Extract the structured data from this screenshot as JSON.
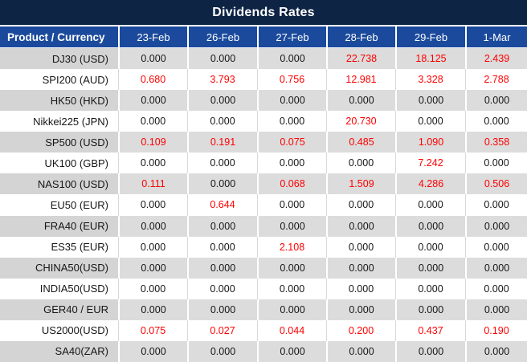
{
  "title": "Dividends Rates",
  "table": {
    "product_header": "Product / Currency",
    "date_headers": [
      "23-Feb",
      "26-Feb",
      "27-Feb",
      "28-Feb",
      "29-Feb",
      "1-Mar"
    ],
    "rows": [
      {
        "product": "DJ30 (USD)",
        "values": [
          "0.000",
          "0.000",
          "0.000",
          "22.738",
          "18.125",
          "2.439"
        ],
        "red": [
          false,
          false,
          false,
          true,
          true,
          true
        ]
      },
      {
        "product": "SPI200 (AUD)",
        "values": [
          "0.680",
          "3.793",
          "0.756",
          "12.981",
          "3.328",
          "2.788"
        ],
        "red": [
          true,
          true,
          true,
          true,
          true,
          true
        ]
      },
      {
        "product": "HK50 (HKD)",
        "values": [
          "0.000",
          "0.000",
          "0.000",
          "0.000",
          "0.000",
          "0.000"
        ],
        "red": [
          false,
          false,
          false,
          false,
          false,
          false
        ]
      },
      {
        "product": "Nikkei225 (JPN)",
        "values": [
          "0.000",
          "0.000",
          "0.000",
          "20.730",
          "0.000",
          "0.000"
        ],
        "red": [
          false,
          false,
          false,
          true,
          false,
          false
        ]
      },
      {
        "product": "SP500 (USD)",
        "values": [
          "0.109",
          "0.191",
          "0.075",
          "0.485",
          "1.090",
          "0.358"
        ],
        "red": [
          true,
          true,
          true,
          true,
          true,
          true
        ]
      },
      {
        "product": "UK100 (GBP)",
        "values": [
          "0.000",
          "0.000",
          "0.000",
          "0.000",
          "7.242",
          "0.000"
        ],
        "red": [
          false,
          false,
          false,
          false,
          true,
          false
        ]
      },
      {
        "product": "NAS100 (USD)",
        "values": [
          "0.111",
          "0.000",
          "0.068",
          "1.509",
          "4.286",
          "0.506"
        ],
        "red": [
          true,
          false,
          true,
          true,
          true,
          true
        ]
      },
      {
        "product": "EU50 (EUR)",
        "values": [
          "0.000",
          "0.644",
          "0.000",
          "0.000",
          "0.000",
          "0.000"
        ],
        "red": [
          false,
          true,
          false,
          false,
          false,
          false
        ]
      },
      {
        "product": "FRA40 (EUR)",
        "values": [
          "0.000",
          "0.000",
          "0.000",
          "0.000",
          "0.000",
          "0.000"
        ],
        "red": [
          false,
          false,
          false,
          false,
          false,
          false
        ]
      },
      {
        "product": "ES35 (EUR)",
        "values": [
          "0.000",
          "0.000",
          "2.108",
          "0.000",
          "0.000",
          "0.000"
        ],
        "red": [
          false,
          false,
          true,
          false,
          false,
          false
        ]
      },
      {
        "product": "CHINA50(USD)",
        "values": [
          "0.000",
          "0.000",
          "0.000",
          "0.000",
          "0.000",
          "0.000"
        ],
        "red": [
          false,
          false,
          false,
          false,
          false,
          false
        ]
      },
      {
        "product": "INDIA50(USD)",
        "values": [
          "0.000",
          "0.000",
          "0.000",
          "0.000",
          "0.000",
          "0.000"
        ],
        "red": [
          false,
          false,
          false,
          false,
          false,
          false
        ]
      },
      {
        "product": "GER40 / EUR",
        "values": [
          "0.000",
          "0.000",
          "0.000",
          "0.000",
          "0.000",
          "0.000"
        ],
        "red": [
          false,
          false,
          false,
          false,
          false,
          false
        ]
      },
      {
        "product": "US2000(USD)",
        "values": [
          "0.075",
          "0.027",
          "0.044",
          "0.200",
          "0.437",
          "0.190"
        ],
        "red": [
          true,
          true,
          true,
          true,
          true,
          true
        ]
      },
      {
        "product": "SA40(ZAR)",
        "values": [
          "0.000",
          "0.000",
          "0.000",
          "0.000",
          "0.000",
          "0.000"
        ],
        "red": [
          false,
          false,
          false,
          false,
          false,
          false
        ]
      }
    ]
  },
  "colors": {
    "title_bar_navy": "#0d2444",
    "header_blue": "#1b4a9c",
    "row_gray": "#dcdcdc",
    "product_col_gray": "#d4d4d4",
    "highlight_red": "#fe0000",
    "text_dark": "#161616"
  }
}
